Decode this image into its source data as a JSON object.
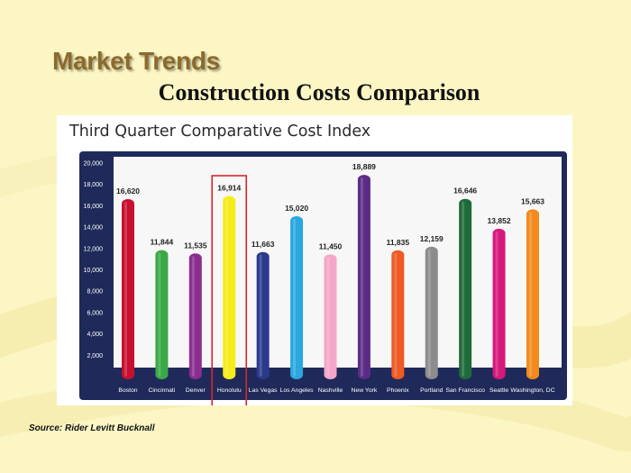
{
  "slide": {
    "title": "Market Trends",
    "subtitle": "Construction Costs Comparison",
    "source": "Source: Rider Levitt Bucknall"
  },
  "chart_data": {
    "type": "bar",
    "title": "Third Quarter Comparative Cost Index",
    "xlabel": "",
    "ylabel": "",
    "ylim": [
      0,
      20000
    ],
    "yticks": [
      2000,
      4000,
      6000,
      8000,
      10000,
      12000,
      14000,
      16000,
      18000,
      20000
    ],
    "ytick_labels": [
      "2,000",
      "4,000",
      "6,000",
      "8,000",
      "10,000",
      "12,000",
      "14,000",
      "16,000",
      "18,000",
      "20,000"
    ],
    "grid": false,
    "legend": "none",
    "categories": [
      "Boston",
      "Cincinnati",
      "Denver",
      "Honolulu",
      "Las Vegas",
      "Los Angeles",
      "Nashville",
      "New York",
      "Phoenix",
      "Portland",
      "San Francisco",
      "Seattle",
      "Washington, DC"
    ],
    "values": [
      16620,
      11844,
      11535,
      16914,
      11663,
      15020,
      11450,
      18889,
      11835,
      12159,
      16646,
      13852,
      15663
    ],
    "value_labels": [
      "16,620",
      "11,844",
      "11,535",
      "16,914",
      "11,663",
      "15,020",
      "11,450",
      "18,889",
      "11,835",
      "12,159",
      "16,646",
      "13,852",
      "15,663"
    ],
    "bar_colors": [
      "#c8102e",
      "#3aa845",
      "#8b2d8e",
      "#f6ec1a",
      "#2b3a8c",
      "#2aa8df",
      "#f4a6c8",
      "#5b2c86",
      "#ee5a24",
      "#8c8c8c",
      "#1e6b3a",
      "#d7187a",
      "#f28a1c"
    ],
    "highlight": {
      "category": "Honolulu",
      "outline_color": "#d7262b"
    },
    "plot_background": "#1f2a5a"
  }
}
